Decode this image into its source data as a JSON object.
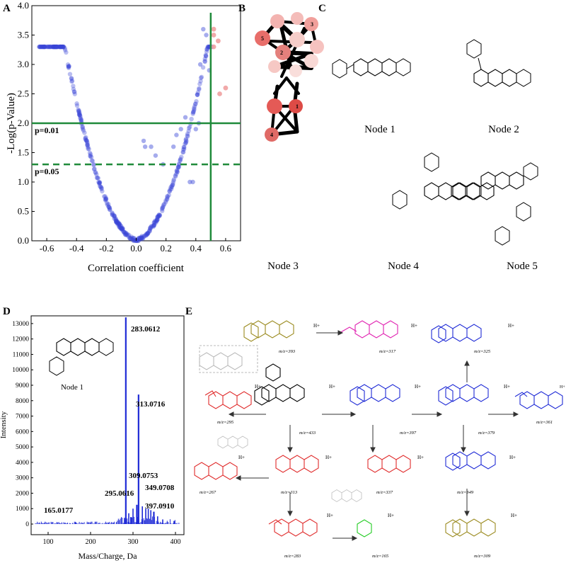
{
  "panels": {
    "a": "A",
    "b": "B",
    "c": "C",
    "d": "D",
    "e": "E"
  },
  "volcano": {
    "chart_data": {
      "type": "scatter",
      "xlabel": "Correlation coefficient",
      "ylabel": "-Log(p-Value)",
      "xlim": [
        -0.7,
        0.7
      ],
      "ylim": [
        0.0,
        4.0
      ],
      "x_ticks": [
        "-0.6",
        "-0.4",
        "-0.2",
        "0.0",
        "0.2",
        "0.4",
        "0.6"
      ],
      "y_ticks": [
        "0.0",
        "0.5",
        "1.0",
        "1.5",
        "2.0",
        "2.5",
        "3.0",
        "3.5",
        "4.0"
      ],
      "thresholds": [
        {
          "label": "p=0.01",
          "y": 2.0,
          "style": "solid"
        },
        {
          "label": "p=0.05",
          "y": 1.3,
          "style": "dashed"
        }
      ],
      "vertical_threshold_x": 0.5,
      "colors": {
        "points": "#3a46d6",
        "significant": "#f0a0a0",
        "lines": "#1f8a3a"
      }
    }
  },
  "nodes": {
    "labels": [
      "Node 1",
      "Node 2",
      "Node 3",
      "Node 4",
      "Node 5"
    ],
    "numbers": [
      "1",
      "2",
      "3",
      "4",
      "5"
    ]
  },
  "ms": {
    "chart_data": {
      "type": "bar",
      "xlabel": "Mass/Charge, Da",
      "ylabel": "Intensity",
      "xlim": [
        60,
        420
      ],
      "ylim": [
        0,
        13500
      ],
      "x_ticks": [
        "100",
        "200",
        "300",
        "400"
      ],
      "y_ticks": [
        "0",
        "1000",
        "2000",
        "3000",
        "4000",
        "5000",
        "6000",
        "7000",
        "8000",
        "9000",
        "10000",
        "11000",
        "12000",
        "13000"
      ],
      "peaks": [
        {
          "mz": 283.0612,
          "intensity": 13400,
          "label": "283.0612"
        },
        {
          "mz": 313.0716,
          "intensity": 8400,
          "label": "313.0716"
        },
        {
          "mz": 309.0753,
          "intensity": 1250,
          "label": "309.0753"
        },
        {
          "mz": 295.0616,
          "intensity": 450,
          "label": "295.0616"
        },
        {
          "mz": 349.0708,
          "intensity": 800,
          "label": "349.0708"
        },
        {
          "mz": 397.091,
          "intensity": 200,
          "label": "397.0910"
        },
        {
          "mz": 165.0177,
          "intensity": 100,
          "label": "165.0177"
        }
      ],
      "inset_label": "Node 1",
      "color": "#1f2bd6"
    }
  },
  "fragments": {
    "labels": [
      "m/z=393",
      "m/z=317",
      "m/z=325",
      "m/z=433",
      "m/z=397",
      "m/z=379",
      "m/z=361",
      "m/z=295",
      "m/z=267",
      "m/z=313",
      "m/z=337",
      "m/z=349",
      "m/z=283",
      "m/z=165",
      "m/z=309"
    ],
    "charge": "H+"
  }
}
